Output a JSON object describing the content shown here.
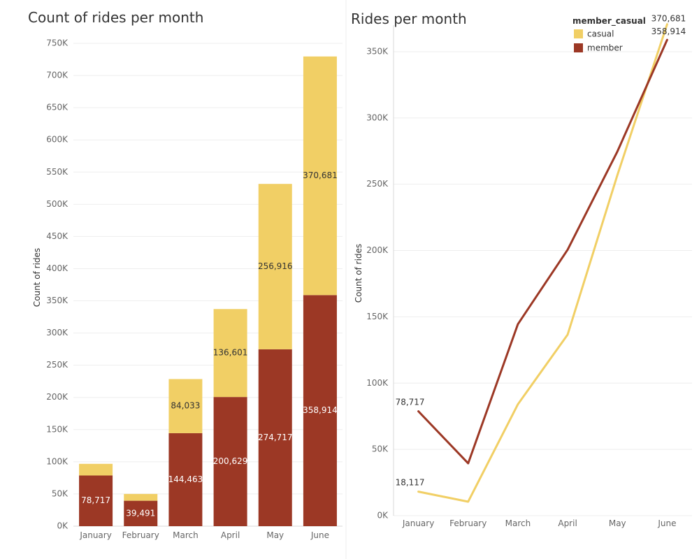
{
  "chart_data": [
    {
      "type": "bar",
      "stacked": true,
      "title": "Count of rides per month",
      "ylabel": "Count of rides",
      "ylim": [
        0,
        750000
      ],
      "yticks": [
        0,
        50000,
        100000,
        150000,
        200000,
        250000,
        300000,
        350000,
        400000,
        450000,
        500000,
        550000,
        600000,
        650000,
        700000,
        750000
      ],
      "ytick_labels": [
        "0K",
        "50K",
        "100K",
        "150K",
        "200K",
        "250K",
        "300K",
        "350K",
        "400K",
        "450K",
        "500K",
        "550K",
        "600K",
        "650K",
        "700K",
        "750K"
      ],
      "categories": [
        "January",
        "February",
        "March",
        "April",
        "May",
        "June"
      ],
      "series": [
        {
          "name": "member",
          "values": [
            78717,
            39491,
            144463,
            200629,
            274717,
            358914
          ],
          "labels": [
            "78,717",
            "39,491",
            "144,463",
            "200,629",
            "274,717",
            "358,914"
          ],
          "color": "#9c3825"
        },
        {
          "name": "casual",
          "values": [
            18117,
            10557,
            84033,
            136601,
            256916,
            370681
          ],
          "labels": [
            "",
            "",
            "84,033",
            "136,601",
            "256,916",
            "370,681"
          ],
          "color": "#f1cf65"
        }
      ]
    },
    {
      "type": "line",
      "title": "Rides per month",
      "ylabel": "Count of rides",
      "ylim": [
        0,
        370000
      ],
      "yticks": [
        0,
        50000,
        100000,
        150000,
        200000,
        250000,
        300000,
        350000
      ],
      "ytick_labels": [
        "0K",
        "50K",
        "100K",
        "150K",
        "200K",
        "250K",
        "300K",
        "350K"
      ],
      "categories": [
        "January",
        "February",
        "March",
        "April",
        "May",
        "June"
      ],
      "legend": {
        "title": "member_casual",
        "position": "top-right",
        "items": [
          {
            "name": "casual",
            "color": "#f1cf65"
          },
          {
            "name": "member",
            "color": "#9c3825"
          }
        ]
      },
      "series": [
        {
          "name": "casual",
          "values": [
            18117,
            10557,
            84033,
            136601,
            256916,
            370681
          ],
          "point_labels": [
            "18,117",
            "",
            "",
            "",
            "",
            "370,681"
          ],
          "color": "#f1cf65"
        },
        {
          "name": "member",
          "values": [
            78717,
            39491,
            144463,
            200629,
            274717,
            358914
          ],
          "point_labels": [
            "78,717",
            "",
            "",
            "",
            "",
            "358,914"
          ],
          "color": "#9c3825"
        }
      ]
    }
  ]
}
